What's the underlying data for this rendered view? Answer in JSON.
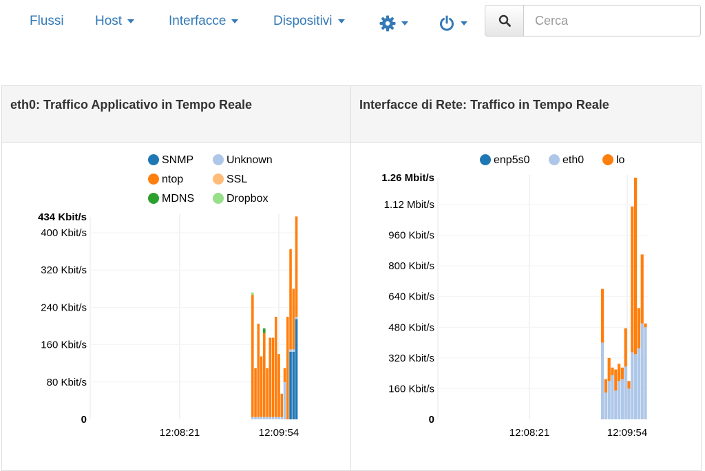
{
  "nav": {
    "flussi": "Flussi",
    "host": "Host",
    "interfacce": "Interfacce",
    "dispositivi": "Dispositivi",
    "settings_icon": "gear-icon",
    "power_icon": "power-icon",
    "search_placeholder": "Cerca",
    "search_icon": "search-icon"
  },
  "colors": {
    "link": "#337ab7"
  },
  "left_panel": {
    "title": "eth0: Traffico Applicativo in Tempo Reale"
  },
  "right_panel": {
    "title": "Interfacce di Rete: Traffico in Tempo Reale"
  },
  "chart_data": [
    {
      "type": "bar",
      "stacked": true,
      "legend_position": "top",
      "ymax_label": "434 Kbit/s",
      "ylim": [
        0,
        434
      ],
      "yticks": [
        0,
        80,
        160,
        240,
        320,
        400
      ],
      "ytick_labels": [
        "0",
        "80 Kbit/s",
        "160 Kbit/s",
        "240 Kbit/s",
        "320 Kbit/s",
        "400 Kbit/s"
      ],
      "xtick_labels": [
        "12:08:21",
        "12:09:54"
      ],
      "series": [
        {
          "name": "SNMP",
          "color": "#1f77b4",
          "values": [
            0,
            0,
            0,
            0,
            0,
            0,
            0,
            0,
            0,
            0,
            0,
            0,
            0,
            145,
            145,
            215
          ]
        },
        {
          "name": "Unknown",
          "color": "#aec7e8",
          "values": [
            5,
            5,
            5,
            5,
            5,
            5,
            5,
            5,
            5,
            5,
            5,
            80,
            0,
            5,
            5,
            5
          ]
        },
        {
          "name": "ntop",
          "color": "#ff7f0e",
          "values": [
            262,
            105,
            200,
            130,
            180,
            105,
            170,
            170,
            215,
            135,
            50,
            30,
            220,
            215,
            130,
            215
          ]
        },
        {
          "name": "SSL",
          "color": "#ffbb78",
          "values": [
            0,
            0,
            0,
            0,
            0,
            0,
            0,
            0,
            0,
            0,
            0,
            0,
            0,
            0,
            0,
            0
          ]
        },
        {
          "name": "MDNS",
          "color": "#2ca02c",
          "values": [
            0,
            0,
            0,
            0,
            10,
            0,
            0,
            0,
            0,
            0,
            0,
            0,
            0,
            0,
            0,
            0
          ]
        },
        {
          "name": "Dropbox",
          "color": "#98df8a",
          "values": [
            5,
            0,
            0,
            0,
            0,
            0,
            0,
            0,
            0,
            0,
            0,
            0,
            0,
            0,
            0,
            0
          ]
        }
      ]
    },
    {
      "type": "bar",
      "stacked": true,
      "legend_position": "top",
      "ymax_label": "1.26 Mbit/s",
      "ylim": [
        0,
        1260
      ],
      "yticks": [
        0,
        160,
        320,
        480,
        640,
        800,
        960,
        1120
      ],
      "ytick_labels": [
        "0",
        "160 Kbit/s",
        "320 Kbit/s",
        "480 Kbit/s",
        "640 Kbit/s",
        "800 Kbit/s",
        "960 Kbit/s",
        "1.12 Mbit/s"
      ],
      "xtick_labels": [
        "12:08:21",
        "12:09:54"
      ],
      "series": [
        {
          "name": "enp5s0",
          "color": "#1f77b4",
          "values": [
            0,
            0,
            0,
            0,
            0,
            0,
            0,
            0,
            0,
            0,
            0,
            0,
            0,
            0
          ]
        },
        {
          "name": "eth0",
          "color": "#aec7e8",
          "values": [
            400,
            140,
            200,
            230,
            150,
            200,
            210,
            275,
            160,
            350,
            340,
            370,
            500,
            480
          ]
        },
        {
          "name": "lo",
          "color": "#ff7f0e",
          "values": [
            280,
            70,
            120,
            40,
            110,
            90,
            60,
            200,
            40,
            760,
            920,
            210,
            360,
            20
          ]
        }
      ]
    }
  ]
}
